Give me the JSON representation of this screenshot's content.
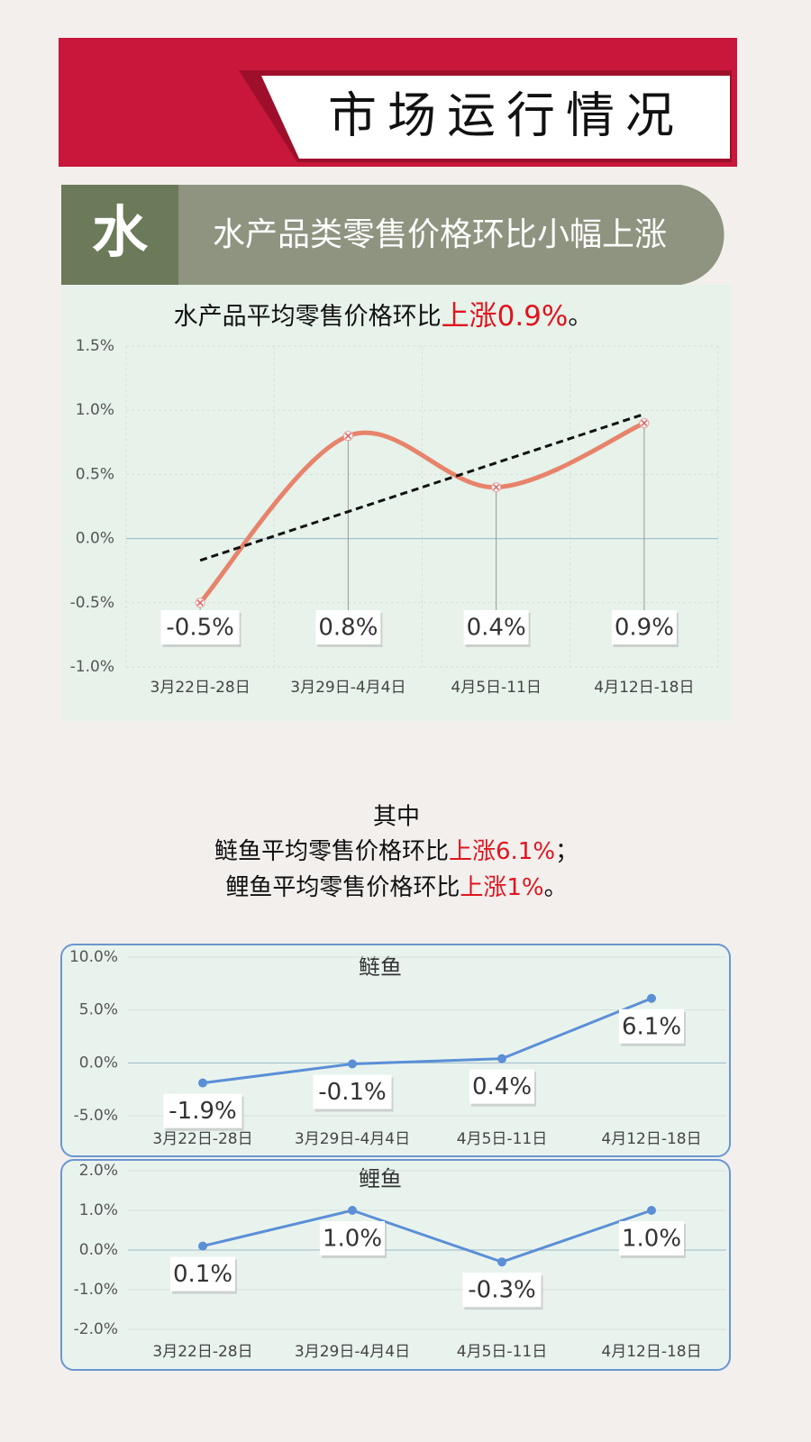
{
  "header": {
    "title": "市场运行情况",
    "badge": "水",
    "subtitle": "水产品类零售价格环比小幅上涨"
  },
  "note": {
    "intro": "其中",
    "lines": [
      {
        "text": "鲢鱼平均零售价格环比",
        "highlight": "上涨6.1%",
        "end": "；"
      },
      {
        "text": "鲤鱼平均零售价格环比",
        "highlight": "上涨1%",
        "end": "。"
      }
    ]
  },
  "chart_data": [
    {
      "type": "line",
      "title": {
        "text": "水产品平均零售价格环比",
        "highlight": "上涨0.9%",
        "end": "。"
      },
      "categories": [
        "3月22日-28日",
        "3月29日-4月4日",
        "4月5日-11日",
        "4月12日-18日"
      ],
      "values": [
        -0.5,
        0.8,
        0.4,
        0.9
      ],
      "value_labels": [
        "-0.5%",
        "0.8%",
        "0.4%",
        "0.9%"
      ],
      "color": "#e8836b",
      "smooth": true,
      "trendline": true,
      "marker": "x",
      "ylim": [
        -1.0,
        1.5
      ],
      "yticks": [
        {
          "value": -1.0,
          "label": "-1.0%"
        },
        {
          "value": -0.5,
          "label": "-0.5%"
        },
        {
          "value": 0.0,
          "label": "0.0%"
        },
        {
          "value": 0.5,
          "label": "0.5%"
        },
        {
          "value": 1.0,
          "label": "1.0%"
        },
        {
          "value": 1.5,
          "label": "1.5%"
        }
      ],
      "grid": true
    },
    {
      "type": "line",
      "title": "鲢鱼",
      "categories": [
        "3月22日-28日",
        "3月29日-4月4日",
        "4月5日-11日",
        "4月12日-18日"
      ],
      "values": [
        -1.9,
        -0.1,
        0.4,
        6.1
      ],
      "value_labels": [
        "-1.9%",
        "-0.1%",
        "0.4%",
        "6.1%"
      ],
      "color": "#5b8fd6",
      "smooth": false,
      "trendline": false,
      "marker": "dot",
      "ylim": [
        -5.0,
        10.0
      ],
      "yticks": [
        {
          "value": -5.0,
          "label": "-5.0%"
        },
        {
          "value": 0.0,
          "label": "0.0%"
        },
        {
          "value": 5.0,
          "label": "5.0%"
        },
        {
          "value": 10.0,
          "label": "10.0%"
        }
      ],
      "grid": true
    },
    {
      "type": "line",
      "title": "鲤鱼",
      "categories": [
        "3月22日-28日",
        "3月29日-4月4日",
        "4月5日-11日",
        "4月12日-18日"
      ],
      "values": [
        0.1,
        1.0,
        -0.3,
        1.0
      ],
      "value_labels": [
        "0.1%",
        "1.0%",
        "-0.3%",
        "1.0%"
      ],
      "color": "#5b8fd6",
      "smooth": false,
      "trendline": false,
      "marker": "dot",
      "ylim": [
        -2.0,
        2.0
      ],
      "yticks": [
        {
          "value": -2.0,
          "label": "-2.0%"
        },
        {
          "value": -1.0,
          "label": "-1.0%"
        },
        {
          "value": 0.0,
          "label": "0.0%"
        },
        {
          "value": 1.0,
          "label": "1.0%"
        },
        {
          "value": 2.0,
          "label": "2.0%"
        }
      ],
      "grid": true
    }
  ]
}
